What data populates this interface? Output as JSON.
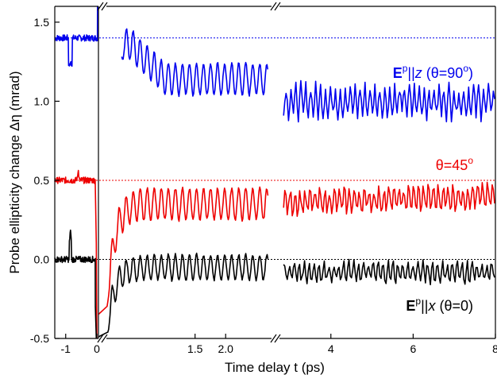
{
  "chart_data": {
    "type": "line",
    "title": "",
    "xlabel": "Time delay t (ps)",
    "ylabel": "Probe ellipticity change  Δη (mrad)",
    "ylim": [
      -0.5,
      1.6
    ],
    "grid": false,
    "x_axis_segments": [
      {
        "range": [
          -1.35,
          0.05
        ],
        "ticks": [
          {
            "value": -1,
            "label": "-1"
          },
          {
            "value": 0,
            "label": "0"
          }
        ]
      },
      {
        "range": [
          0.05,
          2.75
        ],
        "ticks": [
          {
            "value": 1.5,
            "label": "1.5"
          },
          {
            "value": 2.0,
            "label": "2.0"
          }
        ]
      },
      {
        "range": [
          2.75,
          8.0
        ],
        "ticks": [
          {
            "value": 4,
            "label": "4"
          },
          {
            "value": 6,
            "label": "6"
          },
          {
            "value": 8,
            "label": "8"
          }
        ]
      }
    ],
    "y_ticks": [
      {
        "value": -0.5,
        "label": "-0.5"
      },
      {
        "value": 0.0,
        "label": "0.0"
      },
      {
        "value": 0.5,
        "label": "0.5"
      },
      {
        "value": 1.0,
        "label": "1.0"
      },
      {
        "value": 1.5,
        "label": "1.5"
      }
    ],
    "baselines": [
      {
        "y": 1.4,
        "color": "#0000ee"
      },
      {
        "y": 0.5,
        "color": "#ee0000"
      },
      {
        "y": 0.0,
        "color": "#000000"
      }
    ],
    "series": [
      {
        "color": "#0000ee",
        "label_parts": {
          "main": "E",
          "sup": "p",
          "rest": "||",
          "italic": "z",
          "tail": " (θ=90",
          "deg": "o",
          "close": ")"
        },
        "pre": {
          "x": [
            -1.35,
            0.02
          ],
          "baseline": 1.4,
          "amp": 0.02
        },
        "dip": {
          "x": -0.85,
          "y": 1.24
        },
        "osc": {
          "x_start": 0.3,
          "x_end": 2.7,
          "start_y": 1.3,
          "peak_y": 1.38,
          "settle_y": 1.14,
          "amp": 0.1,
          "period": 0.115
        },
        "late": {
          "x_start": 2.85,
          "x_end": 8.0,
          "base": 1.0,
          "amp": 0.09,
          "period": 0.12
        }
      },
      {
        "color": "#ee0000",
        "label_parts": {
          "main": "θ=45",
          "deg": "o"
        },
        "pre": {
          "x": [
            -1.35,
            -0.05
          ],
          "baseline": 0.5,
          "amp": 0.02
        },
        "bump": {
          "x": -0.6,
          "y": 0.57
        },
        "osc": {
          "x_start": 0.05,
          "x_end": 2.7,
          "start_y": -0.35,
          "settle_y": 0.35,
          "amp": 0.1,
          "period": 0.115
        },
        "late": {
          "x_start": 2.85,
          "x_end": 8.0,
          "base": 0.36,
          "end_base": 0.4,
          "amp": 0.07,
          "period": 0.12
        }
      },
      {
        "color": "#000000",
        "label_parts": {
          "main": "E",
          "sup": "p",
          "rest": "||",
          "italic": "x",
          "tail": " (θ=0)"
        },
        "pre": {
          "x": [
            -1.35,
            -0.05
          ],
          "baseline": 0.0,
          "amp": 0.02
        },
        "bump": {
          "x": -0.85,
          "y": 0.18
        },
        "osc": {
          "x_start": 0.05,
          "x_end": 2.7,
          "start_y": -0.5,
          "settle_y": -0.05,
          "amp": 0.08,
          "period": 0.115
        },
        "late": {
          "x_start": 2.85,
          "x_end": 8.0,
          "base": -0.08,
          "amp": 0.06,
          "period": 0.12
        }
      }
    ]
  }
}
